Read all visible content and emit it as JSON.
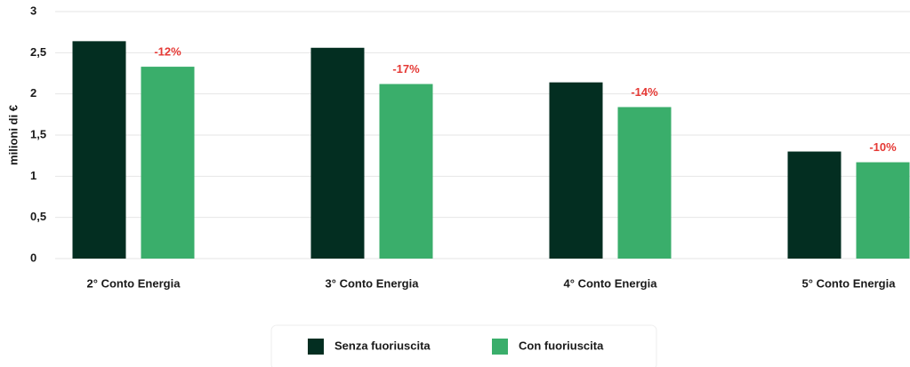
{
  "chart_data": {
    "type": "bar",
    "ylabel": "milioni di €",
    "categories": [
      "2° Conto Energia",
      "3° Conto Energia",
      "4° Conto Energia",
      "5° Conto Energia"
    ],
    "series": [
      {
        "name": "Senza fuoriuscita",
        "color": "#032e21",
        "values": [
          2.64,
          2.56,
          2.14,
          1.3
        ]
      },
      {
        "name": "Con fuoriuscita",
        "color": "#3aae6b",
        "values": [
          2.33,
          2.12,
          1.84,
          1.17
        ]
      }
    ],
    "annotations": [
      "-12%",
      "-17%",
      "-14%",
      "-10%"
    ],
    "annotation_color": "#e53935",
    "ylim": [
      0,
      3
    ],
    "yticks": [
      0,
      {
        "value": 0.5,
        "label": "0,5"
      },
      1,
      {
        "value": 1.5,
        "label": "1,5"
      },
      2,
      {
        "value": 2.5,
        "label": "2,5"
      },
      3
    ],
    "grid": true,
    "legend": "bottom"
  }
}
